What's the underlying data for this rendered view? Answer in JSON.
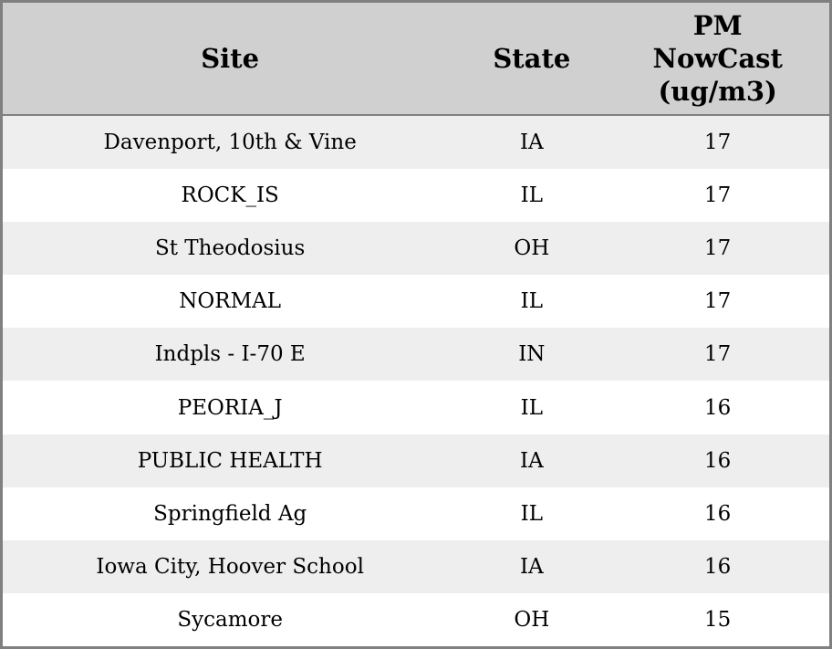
{
  "chart_data": {
    "type": "table",
    "columns": [
      "Site",
      "State",
      "PM NowCast (ug/m3)"
    ],
    "rows": [
      {
        "site": "Davenport, 10th & Vine",
        "state": "IA",
        "pm_nowcast": "17"
      },
      {
        "site": "ROCK_IS",
        "state": "IL",
        "pm_nowcast": "17"
      },
      {
        "site": "St Theodosius",
        "state": "OH",
        "pm_nowcast": "17"
      },
      {
        "site": "NORMAL",
        "state": "IL",
        "pm_nowcast": "17"
      },
      {
        "site": "Indpls - I-70 E",
        "state": "IN",
        "pm_nowcast": "17"
      },
      {
        "site": "PEORIA_J",
        "state": "IL",
        "pm_nowcast": "16"
      },
      {
        "site": "PUBLIC HEALTH",
        "state": "IA",
        "pm_nowcast": "16"
      },
      {
        "site": "Springfield Ag",
        "state": "IL",
        "pm_nowcast": "16"
      },
      {
        "site": "Iowa City, Hoover School",
        "state": "IA",
        "pm_nowcast": "16"
      },
      {
        "site": "Sycamore",
        "state": "OH",
        "pm_nowcast": "15"
      }
    ]
  },
  "colors": {
    "header_bg": "#d0d0d0",
    "row_alt_bg": "#eeeeee",
    "row_bg": "#ffffff",
    "border": "#808080",
    "text": "#000000"
  }
}
